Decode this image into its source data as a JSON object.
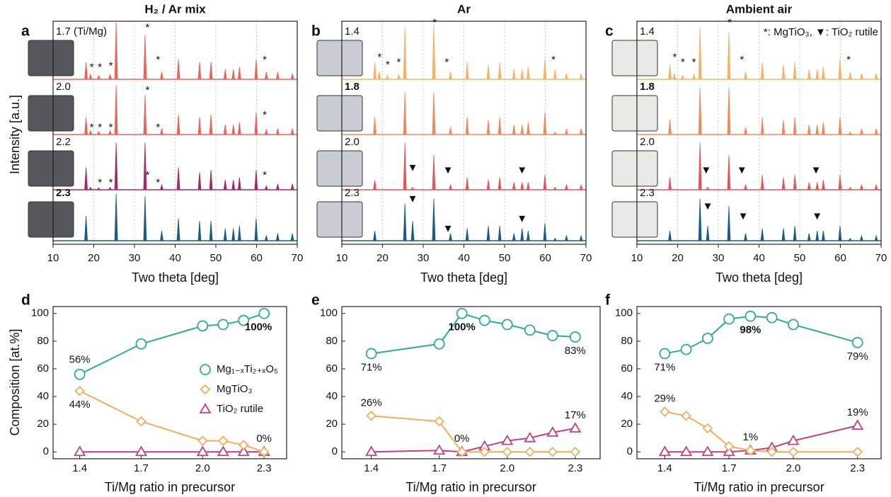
{
  "chart_data": [
    {
      "type": "spectrum",
      "panel": "a",
      "title": "H₂ / Ar mix",
      "xlabel": "Two theta [deg]",
      "ylabel": "Intensity [a.u.]",
      "xlim": [
        10,
        70
      ],
      "xticks": [
        10,
        20,
        30,
        40,
        50,
        60,
        70
      ],
      "grid": true,
      "photo_color": "#55575c",
      "peak_positions": [
        18.1,
        19.2,
        21.2,
        24.0,
        25.5,
        27.4,
        32.6,
        36.7,
        40.8,
        46.0,
        48.8,
        52.3,
        54.3,
        55.8,
        59.9,
        62.4,
        65.2,
        68.8
      ],
      "series": [
        {
          "label": "1.7 (Ti/Mg)",
          "color": "#e8655c",
          "bold": false,
          "values": [
            0.35,
            0.1,
            0.08,
            0.1,
            1.15,
            0,
            0.9,
            0.15,
            0.4,
            0.35,
            0.35,
            0.2,
            0.2,
            0.25,
            0.4,
            0.15,
            0.15,
            0.12
          ],
          "markers": {
            "symbol": "*",
            "x": [
              19.5,
              21.5,
              24.2,
              33.2,
              35.8,
              62.0
            ],
            "y": [
              0.15,
              0.15,
              0.18,
              0.95,
              0.3,
              0.3
            ]
          }
        },
        {
          "label": "2.0",
          "color": "#e8655c",
          "bold": false,
          "values": [
            0.35,
            0.08,
            0.06,
            0.08,
            1.0,
            0,
            0.8,
            0.12,
            0.4,
            0.35,
            0.4,
            0.2,
            0.2,
            0.25,
            0.45,
            0.1,
            0.12,
            0.12
          ],
          "markers": {
            "symbol": "*",
            "x": [
              19.5,
              21.5,
              24.2,
              33.2,
              35.8,
              62.0
            ],
            "y": [
              0.05,
              0.05,
              0.05,
              0.8,
              0.05,
              0.3
            ]
          }
        },
        {
          "label": "2.2",
          "color": "#a3296f",
          "bold": false,
          "values": [
            0.45,
            0.05,
            0.04,
            0.05,
            0.95,
            0,
            0.95,
            0.1,
            0.45,
            0.35,
            0.4,
            0.2,
            0.2,
            0.25,
            0.4,
            0.08,
            0.12,
            0.12
          ],
          "markers": {
            "symbol": "*",
            "x": [
              21.5,
              24.2,
              33.2,
              35.8,
              62.0
            ],
            "y": [
              0.05,
              0.05,
              0.2,
              0.05,
              0.2
            ]
          }
        },
        {
          "label": "2.3",
          "color": "#1d5a86",
          "bold": true,
          "values": [
            0.5,
            0,
            0,
            0,
            0.95,
            0,
            0.9,
            0.2,
            0.45,
            0.4,
            0.4,
            0.25,
            0.25,
            0.3,
            0.45,
            0.1,
            0.15,
            0.15
          ]
        }
      ]
    },
    {
      "type": "spectrum",
      "panel": "b",
      "title": "Ar",
      "xlabel": "Two theta [deg]",
      "xlim": [
        10,
        70
      ],
      "xticks": [
        10,
        20,
        30,
        40,
        50,
        60,
        70
      ],
      "grid": true,
      "photo_color": "#c9ccd2",
      "peak_positions": [
        18.1,
        19.2,
        21.2,
        24.0,
        25.5,
        27.4,
        32.6,
        36.7,
        40.8,
        46.0,
        48.8,
        52.3,
        54.3,
        55.8,
        59.9,
        62.4,
        65.2,
        68.8
      ],
      "series": [
        {
          "label": "1.4",
          "color": "#f4b36a",
          "bold": false,
          "values": [
            0.35,
            0.15,
            0.08,
            0.1,
            1.05,
            0,
            1.1,
            0.15,
            0.35,
            0.3,
            0.35,
            0.2,
            0.2,
            0.25,
            0.4,
            0.2,
            0.12,
            0.12
          ],
          "markers": {
            "symbol": "*",
            "x": [
              19.3,
              21.3,
              24.0,
              32.8,
              35.8,
              62.0
            ],
            "y": [
              0.35,
              0.2,
              0.25,
              1.05,
              0.25,
              0.3
            ]
          }
        },
        {
          "label": "1.8",
          "color": "#ee8a5e",
          "bold": true,
          "values": [
            0.35,
            0,
            0,
            0,
            0.85,
            0,
            0.85,
            0.15,
            0.35,
            0.3,
            0.35,
            0.2,
            0.2,
            0.25,
            0.45,
            0.05,
            0.12,
            0.12
          ]
        },
        {
          "label": "2.0",
          "color": "#e3565a",
          "bold": false,
          "values": [
            0.2,
            0,
            0,
            0,
            0.95,
            0.05,
            0.7,
            0.1,
            0.25,
            0.2,
            0.25,
            0.15,
            0.15,
            0.15,
            0.3,
            0.05,
            0.1,
            0.1
          ],
          "markers": {
            "symbol": "▼",
            "x": [
              27.4,
              36.1,
              54.3
            ],
            "y": [
              0.35,
              0.3,
              0.3
            ]
          }
        },
        {
          "label": "2.3",
          "color": "#1d5a86",
          "bold": false,
          "values": [
            0.2,
            0,
            0,
            0,
            0.75,
            0.4,
            0.85,
            0.15,
            0.25,
            0.3,
            0.3,
            0.15,
            0.25,
            0.2,
            0.35,
            0.05,
            0.1,
            0.1
          ],
          "markers": {
            "symbol": "▼",
            "x": [
              27.4,
              36.1,
              54.3
            ],
            "y": [
              0.75,
              0.15,
              0.35
            ]
          }
        }
      ]
    },
    {
      "type": "spectrum",
      "panel": "c",
      "title": "Ambient air",
      "xlabel": "Two theta [deg]",
      "note": "*: MgTiO₃, ▼: TiO₂ rutile",
      "xlim": [
        10,
        70
      ],
      "xticks": [
        10,
        20,
        30,
        40,
        50,
        60,
        70
      ],
      "grid": true,
      "photo_color": "#e9e9e6",
      "peak_positions": [
        18.1,
        19.2,
        21.2,
        24.0,
        25.5,
        27.4,
        32.6,
        36.7,
        40.8,
        46.0,
        48.8,
        52.3,
        54.3,
        55.8,
        59.9,
        62.4,
        65.2,
        68.8
      ],
      "series": [
        {
          "label": "1.4",
          "color": "#f4b36a",
          "bold": false,
          "values": [
            0.3,
            0.12,
            0.08,
            0.1,
            1.05,
            0,
            0.95,
            0.15,
            0.35,
            0.3,
            0.35,
            0.2,
            0.2,
            0.25,
            0.4,
            0.15,
            0.12,
            0.12
          ],
          "markers": {
            "symbol": "*",
            "x": [
              19.3,
              21.3,
              24.0,
              32.8,
              35.8,
              62.0
            ],
            "y": [
              0.35,
              0.25,
              0.25,
              1.05,
              0.3,
              0.3
            ]
          }
        },
        {
          "label": "1.8",
          "color": "#ee8a5e",
          "bold": true,
          "values": [
            0.3,
            0,
            0,
            0,
            0.95,
            0,
            0.95,
            0.15,
            0.35,
            0.3,
            0.35,
            0.2,
            0.2,
            0.25,
            0.35,
            0.05,
            0.12,
            0.12
          ]
        },
        {
          "label": "2.0",
          "color": "#e3565a",
          "bold": false,
          "values": [
            0.25,
            0,
            0,
            0,
            0.95,
            0.05,
            0.7,
            0.1,
            0.3,
            0.25,
            0.3,
            0.15,
            0.15,
            0.2,
            0.3,
            0.05,
            0.1,
            0.1
          ],
          "markers": {
            "symbol": "▼",
            "x": [
              27.0,
              35.8,
              54.0
            ],
            "y": [
              0.3,
              0.3,
              0.3
            ]
          }
        },
        {
          "label": "2.3",
          "color": "#1d5a86",
          "bold": false,
          "values": [
            0.2,
            0,
            0,
            0,
            0.85,
            0.3,
            0.7,
            0.15,
            0.25,
            0.25,
            0.3,
            0.15,
            0.2,
            0.2,
            0.3,
            0.05,
            0.1,
            0.1
          ],
          "markers": {
            "symbol": "▼",
            "x": [
              27.4,
              36.1,
              54.3
            ],
            "y": [
              0.6,
              0.4,
              0.4
            ]
          }
        }
      ]
    },
    {
      "type": "line",
      "panel": "d",
      "xlabel": "Ti/Mg ratio in precursor",
      "ylabel": "Composition [at.%]",
      "xlim": [
        1.27,
        2.41
      ],
      "ylim": [
        -5,
        105
      ],
      "xticks": [
        1.4,
        1.7,
        {
          "value": 2,
          "label": "2.0"
        },
        2.3
      ],
      "yticks": [
        0,
        20,
        40,
        60,
        80,
        100
      ],
      "legend": "right",
      "x": [
        1.4,
        1.7,
        2.0,
        2.1,
        2.2,
        2.3
      ],
      "series": [
        {
          "name": "Mg₁₋ₓTi₂₊ₓO₅",
          "color": "#2fae85",
          "marker": "circle",
          "values": [
            56,
            78,
            91,
            92,
            95,
            100
          ],
          "value_labels": [
            "56%",
            null,
            null,
            null,
            null,
            "100%"
          ]
        },
        {
          "name": "MgTiO₃",
          "color": "#f0ae5c",
          "marker": "diamond",
          "values": [
            44,
            22,
            8,
            8,
            5,
            0
          ],
          "value_labels": [
            "44%",
            null,
            null,
            null,
            null,
            "0%"
          ]
        },
        {
          "name": "TiO₂ rutile",
          "color": "#c2407c",
          "marker": "triangle",
          "values": [
            0,
            0,
            0,
            0,
            0,
            0
          ]
        }
      ]
    },
    {
      "type": "line",
      "panel": "e",
      "xlabel": "Ti/Mg ratio in precursor",
      "xlim": [
        1.27,
        2.41
      ],
      "ylim": [
        -5,
        105
      ],
      "xticks": [
        1.4,
        1.7,
        {
          "value": 2,
          "label": "2.0"
        },
        2.3
      ],
      "yticks": [
        0,
        20,
        40,
        60,
        80,
        100
      ],
      "x": [
        1.4,
        1.7,
        1.8,
        1.9,
        2.0,
        2.1,
        2.2,
        2.3
      ],
      "series": [
        {
          "name": "Mg₁₋ₓTi₂₊ₓO₅",
          "color": "#2fae85",
          "marker": "circle",
          "values": [
            71,
            78,
            100,
            95,
            92,
            88,
            84,
            83
          ],
          "value_labels": [
            "71%",
            null,
            "100%",
            null,
            null,
            null,
            null,
            "83%"
          ]
        },
        {
          "name": "MgTiO₃",
          "color": "#f0ae5c",
          "marker": "diamond",
          "values": [
            26,
            22,
            0,
            0,
            0,
            0,
            0,
            0
          ],
          "value_labels": [
            "26%",
            null,
            "0%",
            null,
            null,
            null,
            null,
            null
          ]
        },
        {
          "name": "TiO₂ rutile",
          "color": "#c2407c",
          "marker": "triangle",
          "values": [
            0,
            1,
            0,
            4,
            8,
            10,
            14,
            17
          ],
          "value_labels": [
            null,
            null,
            null,
            null,
            null,
            null,
            null,
            "17%"
          ]
        }
      ]
    },
    {
      "type": "line",
      "panel": "f",
      "xlabel": "Ti/Mg ratio in precursor",
      "xlim": [
        1.27,
        2.41
      ],
      "ylim": [
        -5,
        105
      ],
      "xticks": [
        1.4,
        1.7,
        {
          "value": 2,
          "label": "2.0"
        },
        2.3
      ],
      "yticks": [
        0,
        20,
        40,
        60,
        80,
        100
      ],
      "x": [
        1.4,
        1.5,
        1.6,
        1.7,
        1.8,
        1.9,
        2.0,
        2.3
      ],
      "series": [
        {
          "name": "Mg₁₋ₓTi₂₊ₓO₅",
          "color": "#2fae85",
          "marker": "circle",
          "values": [
            71,
            74,
            82,
            96,
            98,
            97,
            92,
            79
          ],
          "value_labels": [
            "71%",
            null,
            null,
            null,
            "98%",
            null,
            null,
            "79%"
          ]
        },
        {
          "name": "MgTiO₃",
          "color": "#f0ae5c",
          "marker": "diamond",
          "values": [
            29,
            26,
            17,
            4,
            1,
            0,
            0,
            0
          ],
          "value_labels": [
            "29%",
            null,
            null,
            null,
            "1%",
            null,
            null,
            null
          ]
        },
        {
          "name": "TiO₂ rutile",
          "color": "#c2407c",
          "marker": "triangle",
          "values": [
            0,
            0,
            0,
            0,
            1,
            3,
            8,
            19
          ],
          "value_labels": [
            null,
            null,
            null,
            null,
            null,
            null,
            null,
            "19%"
          ]
        }
      ]
    }
  ]
}
